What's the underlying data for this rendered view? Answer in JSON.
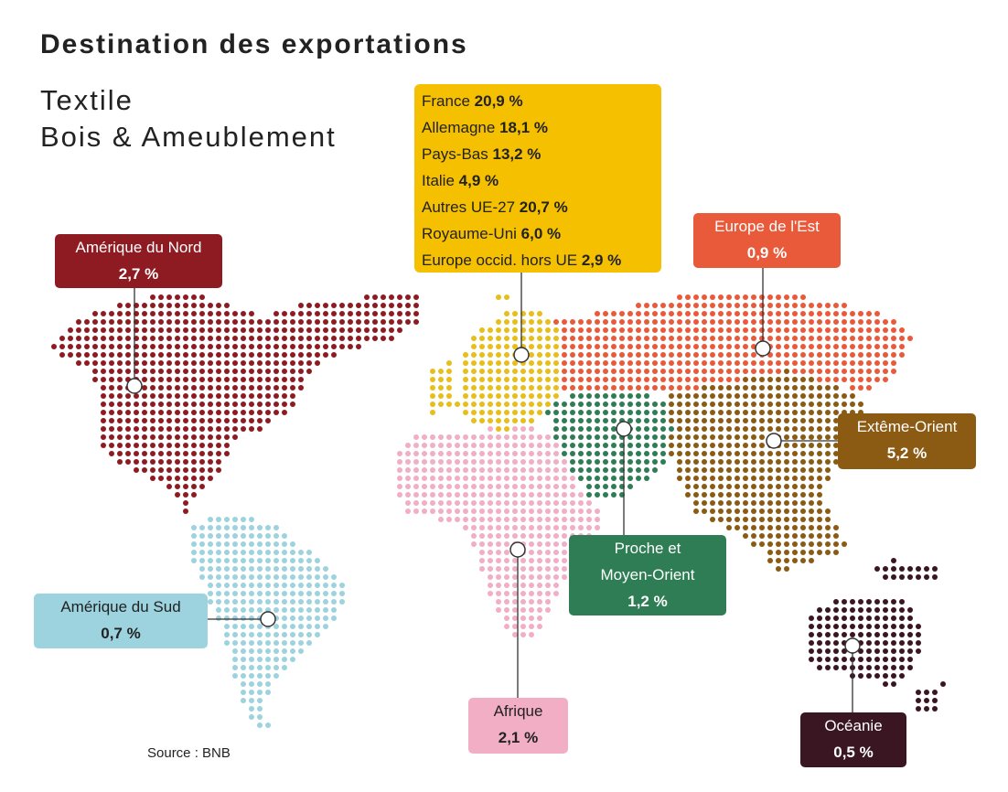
{
  "title": "Destination des exportations",
  "subtitle": [
    "Textile",
    "Bois & Ameublement"
  ],
  "source": "Source : BNB",
  "colors": {
    "north_america": "#8E1B22",
    "south_america": "#9CD3DF",
    "europe": "#E8BE1A",
    "eastern_europe": "#E95A3A",
    "middle_east": "#2E7D55",
    "far_east": "#8B5A13",
    "africa": "#F2AEC4",
    "oceania": "#3A1622"
  },
  "europe_breakdown": [
    {
      "name": "France",
      "value": "20,9 %"
    },
    {
      "name": "Allemagne",
      "value": "18,1 %"
    },
    {
      "name": "Pays-Bas",
      "value": "13,2 %"
    },
    {
      "name": "Italie",
      "value": "4,9 %"
    },
    {
      "name": "Autres UE-27",
      "value": "20,7 %"
    },
    {
      "name": "Royaume-Uni",
      "value": "6,0 %"
    },
    {
      "name": "Europe occid. hors UE",
      "value": "2,9 %"
    }
  ],
  "regions": {
    "north_america": {
      "name": "Amérique du Nord",
      "value": "2,7 %"
    },
    "south_america": {
      "name": "Amérique du Sud",
      "value": "0,7 %"
    },
    "eastern_europe": {
      "name": "Europe de l'Est",
      "value": "0,9 %"
    },
    "far_east": {
      "name": "Extême-Orient",
      "value": "5,2 %"
    },
    "middle_east": {
      "name": [
        "Proche et",
        "Moyen-Orient"
      ],
      "value": "1,2 %"
    },
    "africa": {
      "name": "Afrique",
      "value": "2,1 %"
    },
    "oceania": {
      "name": "Océanie",
      "value": "0,5 %"
    }
  }
}
